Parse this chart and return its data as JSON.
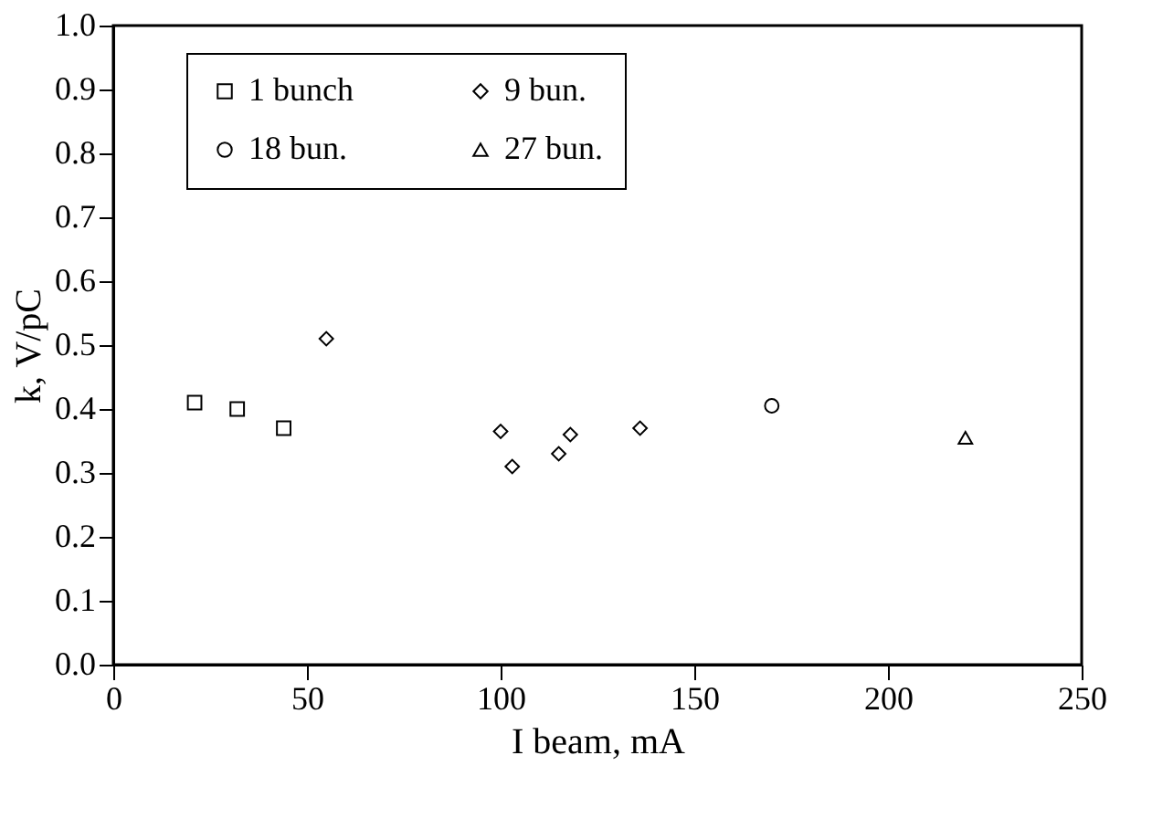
{
  "chart_data": {
    "type": "scatter",
    "xlabel": "I beam, mA",
    "ylabel": "k, V/pC",
    "xlim": [
      0,
      250
    ],
    "xticks": [
      0,
      50,
      100,
      150,
      200,
      250
    ],
    "ylim": [
      0,
      1.0
    ],
    "yticks": [
      {
        "value": 0,
        "label": "0.0"
      },
      0.1,
      0.2,
      0.3,
      0.4,
      0.5,
      0.6,
      0.7,
      0.8,
      0.9,
      {
        "value": 1,
        "label": "1.0"
      }
    ],
    "grid": false,
    "legend": "top",
    "series": [
      {
        "name": "1 bunch",
        "color": "#000000",
        "marker": "square",
        "x": [
          21,
          32,
          44
        ],
        "values": [
          0.41,
          0.4,
          0.37
        ]
      },
      {
        "name": "9 bun.",
        "color": "#000000",
        "marker": "diamond",
        "x": [
          55,
          100,
          103,
          115,
          118,
          136
        ],
        "values": [
          0.51,
          0.365,
          0.31,
          0.33,
          0.36,
          0.37
        ]
      },
      {
        "name": "18 bun.",
        "color": "#000000",
        "marker": "circle",
        "x": [
          170
        ],
        "values": [
          0.405
        ]
      },
      {
        "name": "27 bun.",
        "color": "#000000",
        "marker": "triangle",
        "x": [
          220
        ],
        "values": [
          0.355
        ]
      }
    ]
  }
}
